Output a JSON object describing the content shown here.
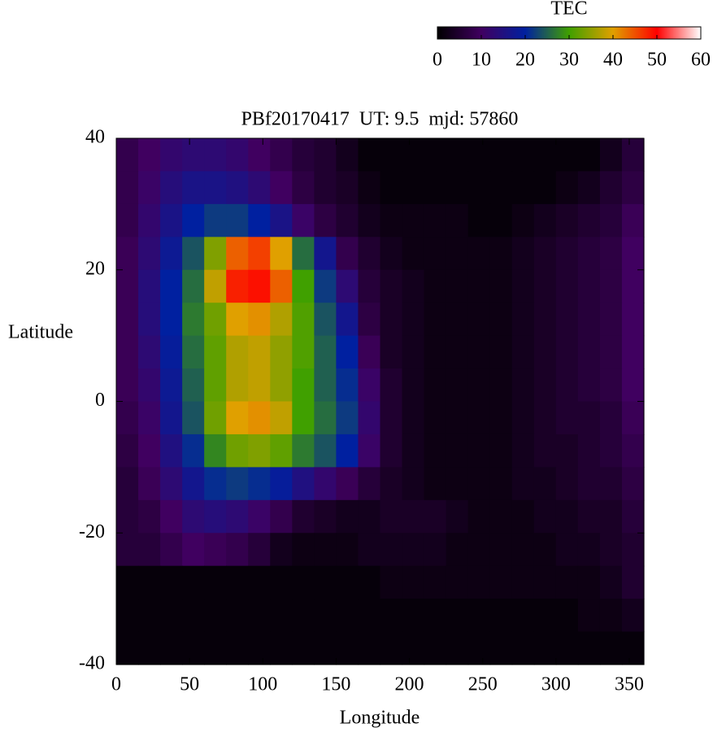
{
  "chart_data": {
    "type": "heatmap",
    "title": "PBf20170417  UT: 9.5  mjd: 57860",
    "x_label": "Longitude",
    "y_label": "Latitude",
    "xlim": [
      0,
      360
    ],
    "ylim": [
      -40,
      40
    ],
    "xticks": [
      0,
      50,
      100,
      150,
      200,
      250,
      300,
      350
    ],
    "yticks": [
      -40,
      -20,
      0,
      20,
      40
    ],
    "colorbar": {
      "label": "TEC",
      "lim": [
        0,
        60
      ],
      "ticks": [
        0,
        10,
        20,
        30,
        40,
        50,
        60
      ]
    },
    "colorscale": [
      "#000000",
      "#400060",
      "#0020a0",
      "#40a000",
      "#e0a000",
      "#ff0000",
      "#ffffff"
    ],
    "z": [
      [
        8,
        10,
        12,
        13,
        13,
        12,
        10,
        8,
        6,
        5,
        3,
        1,
        1,
        1,
        1,
        1,
        1,
        1,
        1,
        1,
        1,
        1,
        3,
        6
      ],
      [
        8,
        11,
        14,
        16,
        16,
        15,
        13,
        10,
        7,
        5,
        4,
        2,
        1,
        1,
        1,
        1,
        1,
        1,
        1,
        1,
        2,
        3,
        5,
        7
      ],
      [
        8,
        12,
        16,
        20,
        22,
        22,
        20,
        16,
        11,
        7,
        5,
        3,
        2,
        2,
        2,
        2,
        1,
        1,
        2,
        3,
        4,
        5,
        6,
        9
      ],
      [
        9,
        13,
        18,
        24,
        34,
        44,
        46,
        40,
        26,
        17,
        8,
        5,
        3,
        2,
        2,
        2,
        2,
        2,
        3,
        4,
        5,
        6,
        7,
        10
      ],
      [
        9,
        14,
        20,
        26,
        38,
        48,
        49,
        44,
        30,
        22,
        13,
        6,
        4,
        3,
        2,
        2,
        2,
        2,
        3,
        4,
        5,
        6,
        7,
        10
      ],
      [
        9,
        14,
        20,
        27,
        33,
        40,
        41,
        37,
        31,
        24,
        17,
        7,
        4,
        3,
        2,
        2,
        2,
        2,
        3,
        4,
        5,
        6,
        7,
        10
      ],
      [
        9,
        13,
        19,
        26,
        32,
        37,
        38,
        35,
        31,
        25,
        20,
        9,
        4,
        3,
        2,
        2,
        2,
        2,
        3,
        4,
        5,
        6,
        7,
        10
      ],
      [
        9,
        12,
        18,
        25,
        32,
        37,
        38,
        35,
        30,
        25,
        21,
        11,
        5,
        3,
        2,
        2,
        2,
        2,
        3,
        4,
        5,
        6,
        7,
        10
      ],
      [
        8,
        11,
        17,
        24,
        33,
        40,
        41,
        38,
        30,
        26,
        22,
        12,
        5,
        3,
        2,
        2,
        2,
        2,
        3,
        4,
        5,
        5,
        6,
        9
      ],
      [
        7,
        10,
        15,
        21,
        28,
        33,
        34,
        32,
        27,
        24,
        20,
        11,
        5,
        3,
        2,
        2,
        2,
        2,
        3,
        4,
        4,
        5,
        6,
        8
      ],
      [
        6,
        9,
        13,
        17,
        21,
        22,
        21,
        19,
        15,
        12,
        9,
        6,
        4,
        3,
        2,
        2,
        2,
        2,
        3,
        3,
        4,
        5,
        5,
        7
      ],
      [
        6,
        7,
        10,
        13,
        14,
        13,
        11,
        8,
        5,
        4,
        3,
        3,
        4,
        4,
        4,
        3,
        2,
        2,
        2,
        3,
        3,
        4,
        4,
        6
      ],
      [
        6,
        6,
        8,
        10,
        9,
        8,
        6,
        3,
        2,
        2,
        2,
        3,
        3,
        3,
        3,
        2,
        2,
        2,
        2,
        2,
        3,
        3,
        4,
        5
      ],
      [
        1,
        1,
        1,
        1,
        1,
        1,
        1,
        1,
        1,
        1,
        1,
        1,
        2,
        2,
        2,
        2,
        2,
        2,
        2,
        2,
        2,
        2,
        3,
        5
      ],
      [
        1,
        1,
        1,
        1,
        1,
        1,
        1,
        1,
        1,
        1,
        1,
        1,
        1,
        1,
        1,
        1,
        1,
        1,
        1,
        1,
        1,
        2,
        2,
        3
      ],
      [
        1,
        1,
        1,
        1,
        1,
        1,
        1,
        1,
        1,
        1,
        1,
        1,
        1,
        1,
        1,
        1,
        1,
        1,
        1,
        1,
        1,
        1,
        1,
        1
      ]
    ]
  }
}
